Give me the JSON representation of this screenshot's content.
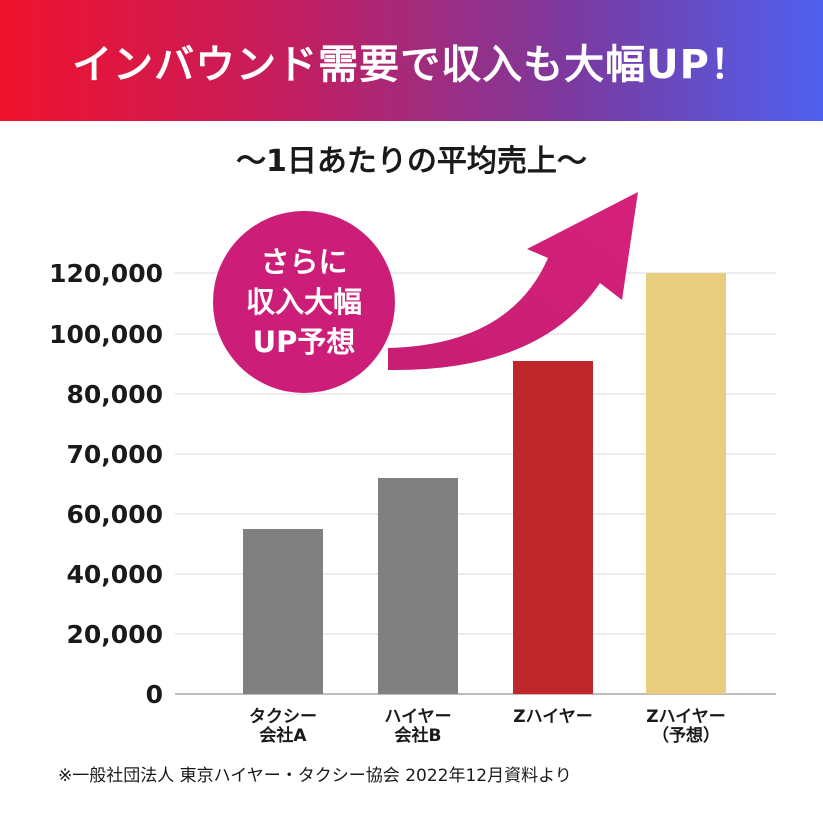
{
  "banner": {
    "title": "インバウンド需要で収入も大幅UP！"
  },
  "badge": {
    "lines": [
      "さらに",
      "収入大幅",
      "UP予想"
    ]
  },
  "source_note": "※一般社団法人 東京ハイヤー・タクシー協会 2022年12月資料より",
  "colors": {
    "accent": "#cc1e78",
    "gray_bar": "#808080",
    "red_bar": "#c0272d",
    "yellow_bar": "#e8cd7e"
  },
  "chart_data": {
    "type": "bar",
    "title": "〜1日あたりの平均売上〜",
    "y_ticks": [
      "0",
      "20,000",
      "40,000",
      "60,000",
      "70,000",
      "80,000",
      "100,000",
      "120,000"
    ],
    "categories": [
      {
        "lines": [
          "タクシー",
          "会社A"
        ]
      },
      {
        "lines": [
          "ハイヤー",
          "会社B"
        ]
      },
      {
        "lines": [
          "Zハイヤー"
        ]
      },
      {
        "lines": [
          "Zハイヤー",
          "（予想）"
        ]
      }
    ],
    "values": [
      55000,
      66000,
      91000,
      120000
    ],
    "bar_colors": [
      "#808080",
      "#808080",
      "#c0272d",
      "#e8cd7e"
    ],
    "grid": true
  }
}
